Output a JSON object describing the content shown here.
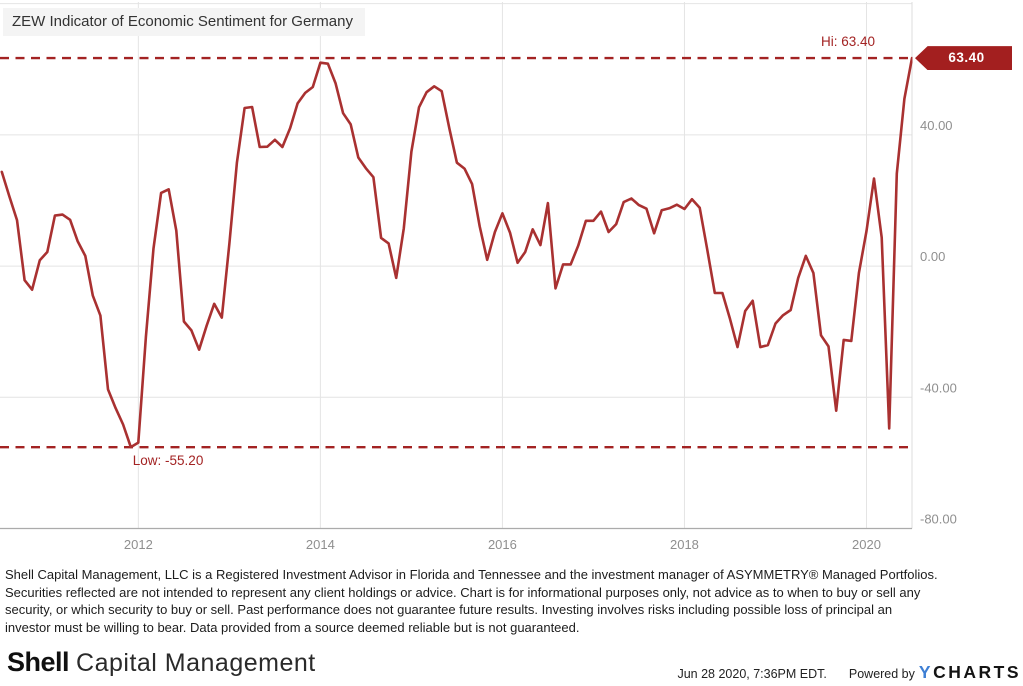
{
  "chart": {
    "title": "ZEW Indicator of Economic Sentiment for Germany",
    "hi_label": "Hi: 63.40",
    "low_label": "Low: -55.20",
    "badge": "63.40",
    "line_color": "#a93131",
    "annotation_color": "#a32323",
    "badge_bg": "#a31f1f",
    "grid_color": "#e4e4e4",
    "axis_color": "#ababab",
    "tick_color": "#8f8f8f"
  },
  "chart_data": {
    "type": "line",
    "title": "ZEW Indicator of Economic Sentiment for Germany",
    "xlabel": "",
    "ylabel": "",
    "xlim": [
      2010.48,
      2020.5
    ],
    "ylim": [
      -80,
      80.5
    ],
    "grid": true,
    "legend": false,
    "hi": 63.4,
    "low": -55.2,
    "x_ticks": [
      {
        "v": 2012,
        "label": "2012"
      },
      {
        "v": 2014,
        "label": "2014"
      },
      {
        "v": 2016,
        "label": "2016"
      },
      {
        "v": 2018,
        "label": "2018"
      },
      {
        "v": 2020,
        "label": "2020"
      }
    ],
    "y_ticks": [
      {
        "v": 40,
        "label": "40.00"
      },
      {
        "v": 0,
        "label": "0.00"
      },
      {
        "v": -40,
        "label": "-40.00"
      },
      {
        "v": -80,
        "label": "-80.00"
      }
    ],
    "y_gridlines": [
      80,
      40,
      0,
      -40,
      -80
    ],
    "series": [
      {
        "name": "ZEW Indicator of Economic Sentiment for Germany",
        "points": [
          [
            2010.5,
            28.7
          ],
          [
            2010.583,
            21.2
          ],
          [
            2010.667,
            14.0
          ],
          [
            2010.75,
            -4.3
          ],
          [
            2010.833,
            -7.2
          ],
          [
            2010.917,
            1.8
          ],
          [
            2011.0,
            4.3
          ],
          [
            2011.083,
            15.4
          ],
          [
            2011.167,
            15.7
          ],
          [
            2011.25,
            14.1
          ],
          [
            2011.333,
            7.6
          ],
          [
            2011.417,
            3.1
          ],
          [
            2011.5,
            -9.0
          ],
          [
            2011.583,
            -15.1
          ],
          [
            2011.667,
            -37.6
          ],
          [
            2011.75,
            -43.3
          ],
          [
            2011.833,
            -48.3
          ],
          [
            2011.917,
            -55.2
          ],
          [
            2012.0,
            -53.8
          ],
          [
            2012.083,
            -21.6
          ],
          [
            2012.167,
            5.4
          ],
          [
            2012.25,
            22.3
          ],
          [
            2012.333,
            23.4
          ],
          [
            2012.417,
            10.8
          ],
          [
            2012.5,
            -16.9
          ],
          [
            2012.583,
            -19.6
          ],
          [
            2012.667,
            -25.5
          ],
          [
            2012.75,
            -18.2
          ],
          [
            2012.833,
            -11.5
          ],
          [
            2012.917,
            -15.7
          ],
          [
            2013.0,
            6.9
          ],
          [
            2013.083,
            31.5
          ],
          [
            2013.167,
            48.2
          ],
          [
            2013.25,
            48.5
          ],
          [
            2013.333,
            36.3
          ],
          [
            2013.417,
            36.4
          ],
          [
            2013.5,
            38.5
          ],
          [
            2013.583,
            36.3
          ],
          [
            2013.667,
            42.0
          ],
          [
            2013.75,
            49.6
          ],
          [
            2013.833,
            52.8
          ],
          [
            2013.917,
            54.6
          ],
          [
            2014.0,
            62.0
          ],
          [
            2014.083,
            61.7
          ],
          [
            2014.167,
            55.7
          ],
          [
            2014.25,
            46.6
          ],
          [
            2014.333,
            43.2
          ],
          [
            2014.417,
            33.1
          ],
          [
            2014.5,
            29.8
          ],
          [
            2014.583,
            27.1
          ],
          [
            2014.667,
            8.6
          ],
          [
            2014.75,
            6.9
          ],
          [
            2014.833,
            -3.6
          ],
          [
            2014.917,
            11.5
          ],
          [
            2015.0,
            34.9
          ],
          [
            2015.083,
            48.4
          ],
          [
            2015.167,
            53.0
          ],
          [
            2015.25,
            54.8
          ],
          [
            2015.333,
            53.3
          ],
          [
            2015.417,
            41.9
          ],
          [
            2015.5,
            31.5
          ],
          [
            2015.583,
            29.7
          ],
          [
            2015.667,
            25.0
          ],
          [
            2015.75,
            12.1
          ],
          [
            2015.833,
            1.9
          ],
          [
            2015.917,
            10.4
          ],
          [
            2016.0,
            16.1
          ],
          [
            2016.083,
            10.2
          ],
          [
            2016.167,
            1.0
          ],
          [
            2016.25,
            4.3
          ],
          [
            2016.333,
            11.2
          ],
          [
            2016.417,
            6.4
          ],
          [
            2016.5,
            19.2
          ],
          [
            2016.583,
            -6.8
          ],
          [
            2016.667,
            0.5
          ],
          [
            2016.75,
            0.5
          ],
          [
            2016.833,
            6.2
          ],
          [
            2016.917,
            13.8
          ],
          [
            2017.0,
            13.8
          ],
          [
            2017.083,
            16.6
          ],
          [
            2017.167,
            10.4
          ],
          [
            2017.25,
            12.8
          ],
          [
            2017.333,
            19.5
          ],
          [
            2017.417,
            20.6
          ],
          [
            2017.5,
            18.6
          ],
          [
            2017.583,
            17.5
          ],
          [
            2017.667,
            10.0
          ],
          [
            2017.75,
            17.0
          ],
          [
            2017.833,
            17.6
          ],
          [
            2017.917,
            18.7
          ],
          [
            2018.0,
            17.4
          ],
          [
            2018.083,
            20.4
          ],
          [
            2018.167,
            17.8
          ],
          [
            2018.25,
            5.1
          ],
          [
            2018.333,
            -8.2
          ],
          [
            2018.417,
            -8.2
          ],
          [
            2018.5,
            -16.1
          ],
          [
            2018.583,
            -24.7
          ],
          [
            2018.667,
            -13.7
          ],
          [
            2018.75,
            -10.6
          ],
          [
            2018.833,
            -24.7
          ],
          [
            2018.917,
            -24.1
          ],
          [
            2019.0,
            -17.5
          ],
          [
            2019.083,
            -15.0
          ],
          [
            2019.167,
            -13.4
          ],
          [
            2019.25,
            -3.6
          ],
          [
            2019.333,
            3.1
          ],
          [
            2019.417,
            -2.1
          ],
          [
            2019.5,
            -21.1
          ],
          [
            2019.583,
            -24.5
          ],
          [
            2019.667,
            -44.1
          ],
          [
            2019.75,
            -22.5
          ],
          [
            2019.833,
            -22.8
          ],
          [
            2019.917,
            -2.1
          ],
          [
            2020.0,
            10.7
          ],
          [
            2020.083,
            26.7
          ],
          [
            2020.167,
            8.7
          ],
          [
            2020.25,
            -49.5
          ],
          [
            2020.333,
            28.2
          ],
          [
            2020.417,
            51.0
          ],
          [
            2020.5,
            63.4
          ]
        ]
      }
    ]
  },
  "disclaimer": {
    "lines": [
      "Shell Capital Management, LLC is a Registered Investment Advisor in Florida and Tennessee and the investment manager of ASYMMETRY® Managed Portfolios.",
      "Securities reflected are not intended to represent any client holdings or advice. Chart is for informational purposes only, not advice as to when to buy or sell any",
      "security, or which security to buy or sell. Past performance does not guarantee future results. Investing involves risks including possible loss of principal an",
      "investor must be willing to bear. Data provided from a source deemed reliable but is not guaranteed."
    ]
  },
  "footer": {
    "logo_bold": "Shell",
    "logo_rest": "Capital Management",
    "timestamp": "Jun 28 2020, 7:36PM EDT.",
    "powered_by": "Powered by",
    "ycharts_y": "Y",
    "ycharts_rest": "CHARTS",
    "ycharts_blue": "#3e7fd4"
  }
}
